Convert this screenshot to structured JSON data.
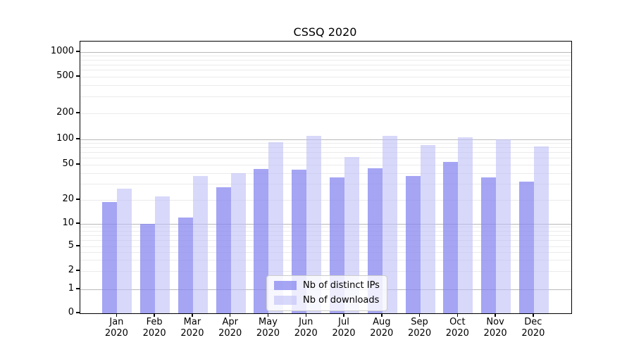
{
  "chart_data": {
    "type": "bar",
    "title": "CSSQ 2020",
    "categories": [
      "Jan",
      "Feb",
      "Mar",
      "Apr",
      "May",
      "Jun",
      "Jul",
      "Aug",
      "Sep",
      "Oct",
      "Nov",
      "Dec"
    ],
    "category_year": "2020",
    "series": [
      {
        "name": "Nb of distinct IPs",
        "color": "rgba(130,130,240,0.72)",
        "color_hex": "#a5a5f4",
        "values": [
          19,
          10,
          12,
          28,
          45,
          44,
          36,
          46,
          37,
          54,
          36,
          32
        ]
      },
      {
        "name": "Nb of downloads",
        "color": "rgba(190,190,246,0.60)",
        "color_hex": "#d8d8fa",
        "values": [
          27,
          22,
          37,
          40,
          93,
          110,
          62,
          110,
          85,
          106,
          100,
          83
        ]
      }
    ],
    "xlabel": "",
    "ylabel": "",
    "yscale": "symlog",
    "y_ticks": [
      0,
      1,
      2,
      5,
      10,
      20,
      50,
      100,
      200,
      500,
      1000
    ],
    "ylim": [
      0,
      1350
    ],
    "grid": true,
    "legend_position": "lower center"
  }
}
